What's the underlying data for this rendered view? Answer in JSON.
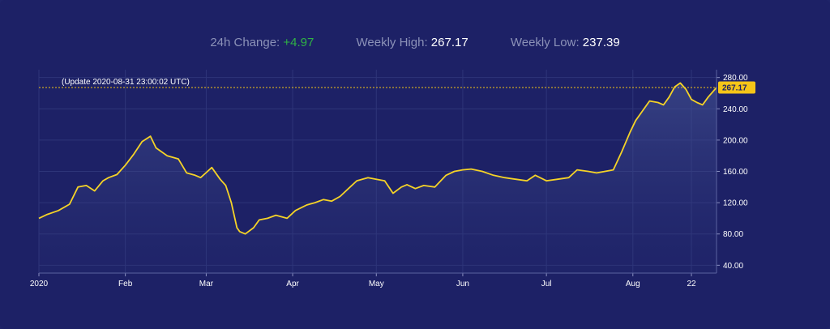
{
  "stats": {
    "change_label": "24h Change:",
    "change_value": "+4.97",
    "high_label": "Weekly High:",
    "high_value": "267.17",
    "low_label": "Weekly Low:",
    "low_value": "237.39"
  },
  "update_note": "(Update 2020-08-31 23:00:02 UTC)",
  "current_price_label": "267.17",
  "colors": {
    "background": "#1d2166",
    "line": "#f5d327",
    "positive": "#2fb344",
    "price_tag": "#f5c518"
  },
  "chart_data": {
    "type": "area",
    "current_price": 267.17,
    "ylim": [
      30,
      290
    ],
    "y_ticks": [
      40,
      80,
      120,
      160,
      200,
      240,
      280
    ],
    "y_tick_labels": [
      "40.00",
      "80.00",
      "120.00",
      "160.00",
      "200.00",
      "240.00",
      "280.00"
    ],
    "x_tick_labels": [
      {
        "label": "2020",
        "date": "2020-01-01"
      },
      {
        "label": "Feb",
        "date": "2020-02-01"
      },
      {
        "label": "Mar",
        "date": "2020-03-01"
      },
      {
        "label": "Apr",
        "date": "2020-04-01"
      },
      {
        "label": "May",
        "date": "2020-05-01"
      },
      {
        "label": "Jun",
        "date": "2020-06-01"
      },
      {
        "label": "Jul",
        "date": "2020-07-01"
      },
      {
        "label": "Aug",
        "date": "2020-08-01"
      },
      {
        "label": "22",
        "date": "2020-08-22"
      }
    ],
    "xlim": [
      "2020-01-01",
      "2020-08-31"
    ],
    "grid": true,
    "x": [
      "2020-01-01",
      "2020-01-04",
      "2020-01-08",
      "2020-01-12",
      "2020-01-15",
      "2020-01-18",
      "2020-01-21",
      "2020-01-24",
      "2020-01-26",
      "2020-01-29",
      "2020-02-01",
      "2020-02-04",
      "2020-02-07",
      "2020-02-10",
      "2020-02-12",
      "2020-02-14",
      "2020-02-16",
      "2020-02-18",
      "2020-02-20",
      "2020-02-23",
      "2020-02-26",
      "2020-02-28",
      "2020-03-03",
      "2020-03-06",
      "2020-03-08",
      "2020-03-10",
      "2020-03-12",
      "2020-03-13",
      "2020-03-15",
      "2020-03-18",
      "2020-03-20",
      "2020-03-23",
      "2020-03-26",
      "2020-03-30",
      "2020-04-02",
      "2020-04-06",
      "2020-04-09",
      "2020-04-12",
      "2020-04-15",
      "2020-04-18",
      "2020-04-21",
      "2020-04-24",
      "2020-04-28",
      "2020-05-01",
      "2020-05-04",
      "2020-05-07",
      "2020-05-10",
      "2020-05-12",
      "2020-05-15",
      "2020-05-18",
      "2020-05-22",
      "2020-05-26",
      "2020-05-29",
      "2020-06-01",
      "2020-06-04",
      "2020-06-08",
      "2020-06-12",
      "2020-06-16",
      "2020-06-20",
      "2020-06-24",
      "2020-06-27",
      "2020-07-01",
      "2020-07-05",
      "2020-07-09",
      "2020-07-12",
      "2020-07-16",
      "2020-07-19",
      "2020-07-22",
      "2020-07-25",
      "2020-07-28",
      "2020-07-31",
      "2020-08-02",
      "2020-08-04",
      "2020-08-07",
      "2020-08-10",
      "2020-08-12",
      "2020-08-14",
      "2020-08-16",
      "2020-08-18",
      "2020-08-20",
      "2020-08-22",
      "2020-08-24",
      "2020-08-26",
      "2020-08-28",
      "2020-08-31"
    ],
    "values": [
      100,
      105,
      110,
      118,
      140,
      142,
      135,
      148,
      152,
      156,
      168,
      182,
      198,
      205,
      190,
      185,
      180,
      178,
      176,
      158,
      155,
      152,
      165,
      150,
      142,
      120,
      88,
      83,
      80,
      88,
      98,
      100,
      104,
      100,
      110,
      117,
      120,
      124,
      122,
      128,
      138,
      148,
      152,
      150,
      148,
      132,
      140,
      143,
      138,
      142,
      140,
      155,
      160,
      162,
      163,
      160,
      155,
      152,
      150,
      148,
      155,
      148,
      150,
      152,
      162,
      160,
      158,
      160,
      162,
      185,
      210,
      225,
      235,
      250,
      248,
      245,
      255,
      268,
      273,
      265,
      252,
      248,
      245,
      255,
      267.17
    ]
  }
}
